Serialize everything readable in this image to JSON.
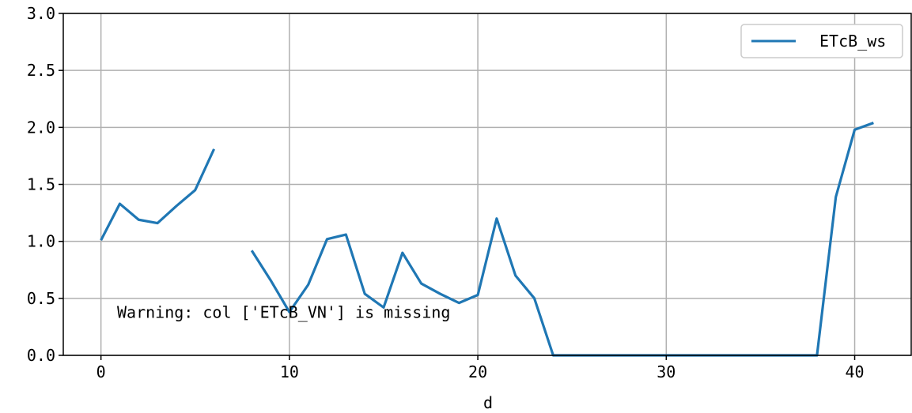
{
  "chart_data": {
    "type": "line",
    "title": "",
    "xlabel": "d",
    "ylabel": "",
    "xlim": [
      -2,
      43
    ],
    "ylim": [
      0,
      3
    ],
    "xticks": [
      0,
      10,
      20,
      30,
      40
    ],
    "xtick_labels": [
      "0",
      "10",
      "20",
      "30",
      "40"
    ],
    "yticks": [
      0,
      0.5,
      1,
      1.5,
      2,
      2.5,
      3
    ],
    "ytick_labels": [
      "0.0",
      "0.5",
      "1.0",
      "1.5",
      "2.0",
      "2.5",
      "3.0"
    ],
    "grid": true,
    "legend_position": "top-right",
    "series": [
      {
        "name": "ETcB_ws",
        "color": "#1f77b4",
        "x": [
          0,
          1,
          2,
          3,
          4,
          5,
          6,
          7,
          8,
          9,
          10,
          11,
          12,
          13,
          14,
          15,
          16,
          17,
          18,
          19,
          20,
          21,
          22,
          23,
          24,
          25,
          26,
          27,
          28,
          29,
          30,
          31,
          32,
          33,
          34,
          35,
          36,
          37,
          38,
          39,
          40,
          41
        ],
        "values": [
          1.01,
          1.33,
          1.19,
          1.16,
          1.31,
          1.45,
          1.81,
          null,
          0.92,
          0.66,
          0.38,
          0.62,
          1.02,
          1.06,
          0.54,
          0.42,
          0.9,
          0.63,
          0.54,
          0.46,
          0.53,
          1.2,
          0.7,
          0.5,
          0.0,
          0.0,
          0.0,
          0.0,
          0.0,
          0.0,
          0.0,
          0.0,
          0.0,
          0.0,
          0.0,
          0.0,
          0.0,
          0.0,
          0.0,
          1.39,
          1.98,
          2.04
        ]
      }
    ],
    "annotations": [
      {
        "text": "Warning: col ['ETcB_VN'] is missing",
        "x": 9.7,
        "y": 0.33
      }
    ]
  }
}
